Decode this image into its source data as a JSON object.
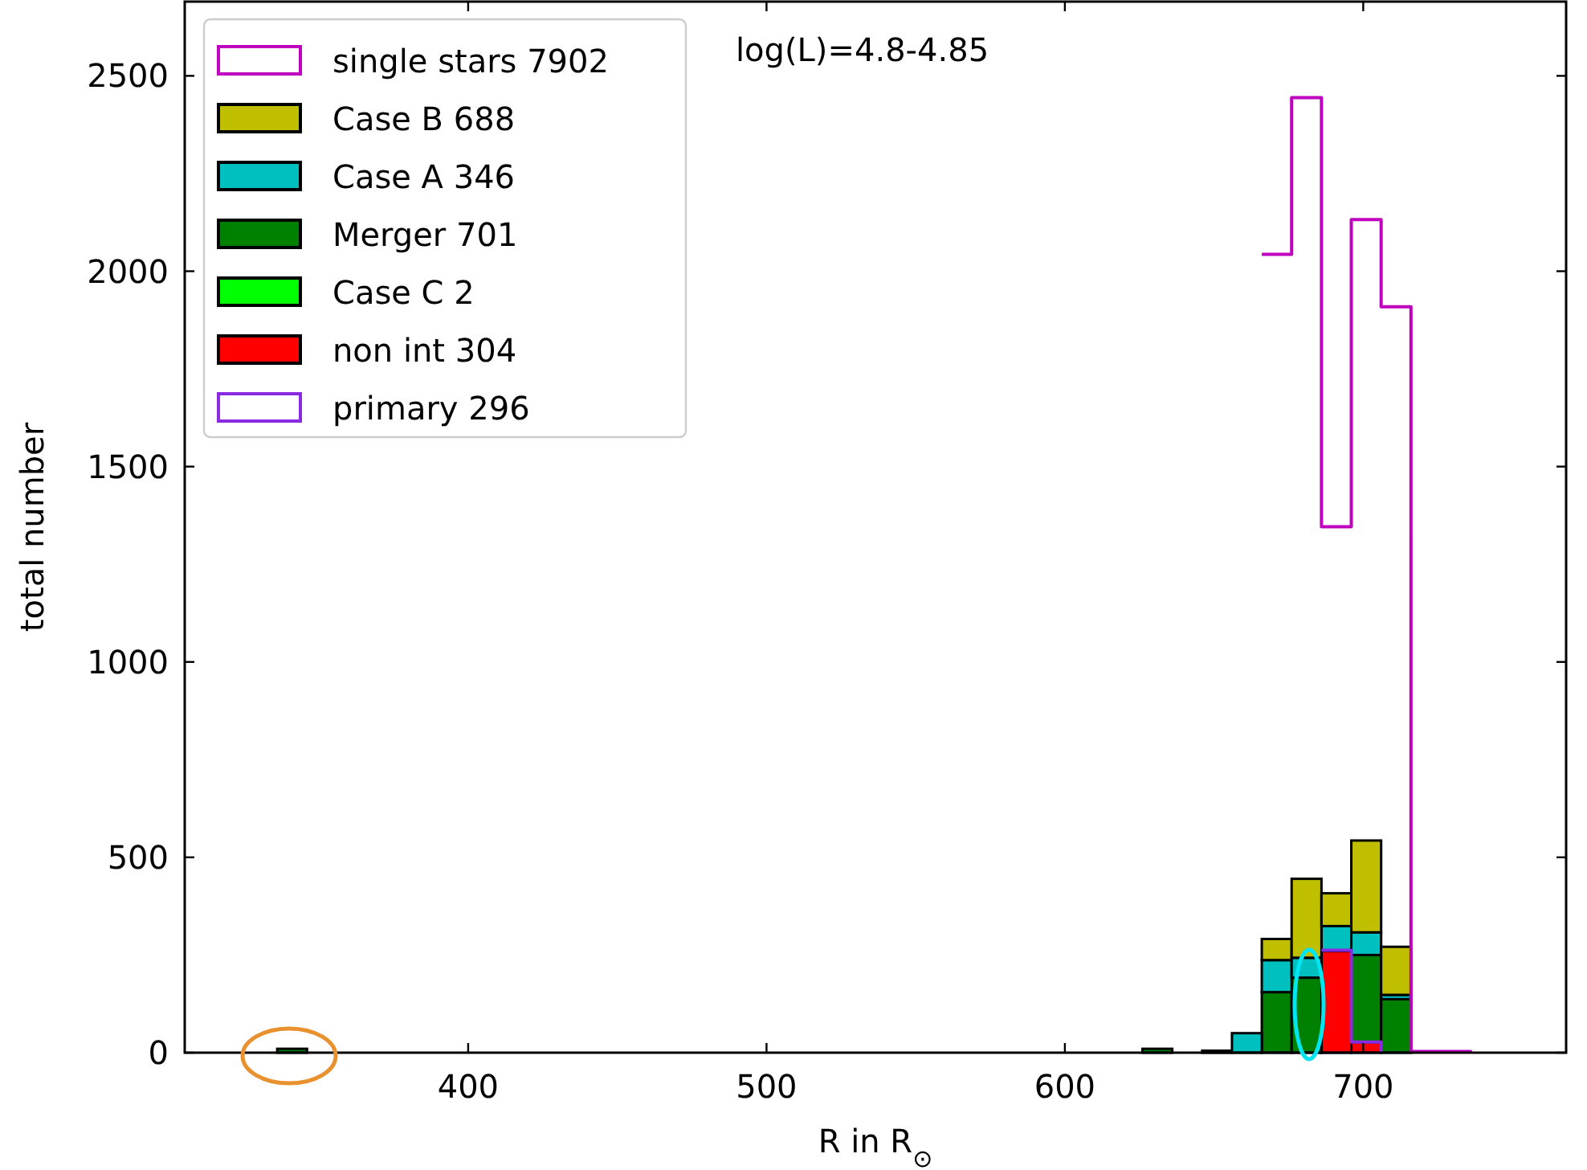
{
  "chart_data": {
    "type": "bar",
    "xlabel": "R in R$_{⊙}$",
    "ylabel": "total number",
    "annotations": [
      "log(L)=4.8-4.85"
    ],
    "x": [
      341,
      631,
      641,
      651,
      661,
      671,
      681,
      691,
      701,
      711
    ],
    "stacked": true,
    "legend": "top left",
    "xlim": [
      305,
      768
    ],
    "ylim": [
      0,
      2690
    ],
    "xticks": [
      400,
      500,
      600,
      700
    ],
    "yticks": [
      0,
      500,
      1000,
      1500,
      2000,
      2500
    ],
    "grid": false,
    "series": [
      {
        "name": "single stars 7902",
        "type": "step",
        "color": "#bf00bf",
        "x": [
          666,
          676,
          686,
          696,
          706,
          716,
          726,
          736
        ],
        "values": [
          2043,
          2444,
          1346,
          2132,
          1909,
          3,
          3,
          0
        ]
      },
      {
        "name": "non int 304",
        "color": "#ff0000",
        "values": [
          0,
          0,
          0,
          0,
          0,
          0,
          0,
          260,
          27,
          0
        ]
      },
      {
        "name": "Case C 2",
        "color": "#00ff00",
        "values": [
          0,
          0,
          0,
          0,
          0,
          0,
          0,
          0,
          0,
          0
        ]
      },
      {
        "name": "Merger 701",
        "color": "#008000",
        "values": [
          10,
          10,
          0,
          5,
          0,
          155,
          192,
          0,
          223,
          137
        ]
      },
      {
        "name": "Case A 346",
        "color": "#00bfbf",
        "values": [
          0,
          0,
          0,
          0,
          50,
          82,
          51,
          64,
          58,
          11
        ]
      },
      {
        "name": "Case B 688",
        "color": "#bfbf00",
        "values": [
          0,
          0,
          0,
          0,
          0,
          54,
          202,
          84,
          235,
          123
        ]
      },
      {
        "name": "primary 296",
        "type": "step",
        "color": "#8a2be2",
        "x": [
          686,
          696,
          706
        ],
        "values": [
          262,
          27,
          0
        ]
      }
    ]
  }
}
